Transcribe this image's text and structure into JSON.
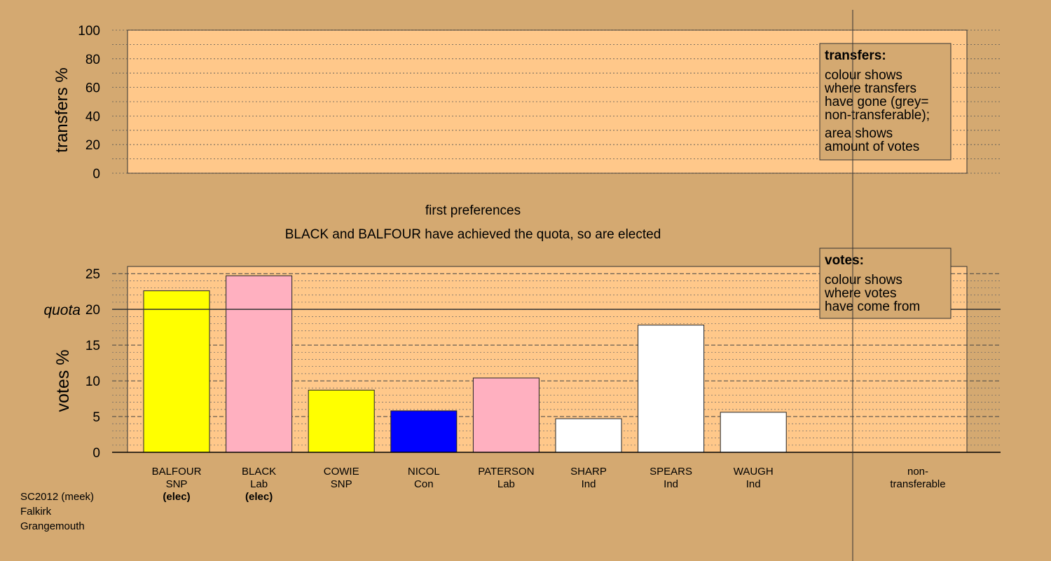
{
  "colors": {
    "background": "#D4A971",
    "plot_bg": "#FFC88A",
    "SNP": "#FFFF00",
    "Lab": "#FFB0C0",
    "Con": "#0000FF",
    "Ind": "#FFFFFF"
  },
  "chart_data": [
    {
      "type": "bar",
      "title": "transfers",
      "ylabel": "transfers %",
      "ylim": [
        0,
        100
      ],
      "yticks": [
        "0",
        "20",
        "40",
        "60",
        "80",
        "100"
      ],
      "series": [],
      "legend": {
        "placement": "top-right",
        "heading": "transfers:",
        "lines1": [
          "colour shows",
          "where transfers",
          "have gone (grey=",
          "non-transferable);"
        ],
        "lines2": [
          "area shows",
          "amount of votes"
        ]
      }
    },
    {
      "type": "bar",
      "title": "first preferences",
      "subtitle": "BLACK and BALFOUR have achieved the quota, so are elected",
      "ylabel": "votes %",
      "ylim": [
        0,
        25
      ],
      "yticks": [
        "0",
        "5",
        "10",
        "15",
        "20",
        "25"
      ],
      "quota": 20,
      "quota_label": "quota",
      "categories": [
        {
          "name": "BALFOUR",
          "party": "SNP",
          "status": "(elec)"
        },
        {
          "name": "BLACK",
          "party": "Lab",
          "status": "(elec)"
        },
        {
          "name": "COWIE",
          "party": "SNP",
          "status": ""
        },
        {
          "name": "NICOL",
          "party": "Con",
          "status": ""
        },
        {
          "name": "PATERSON",
          "party": "Lab",
          "status": ""
        },
        {
          "name": "SHARP",
          "party": "Ind",
          "status": ""
        },
        {
          "name": "SPEARS",
          "party": "Ind",
          "status": ""
        },
        {
          "name": "WAUGH",
          "party": "Ind",
          "status": ""
        }
      ],
      "values": [
        22.6,
        24.7,
        8.7,
        5.8,
        10.4,
        4.7,
        17.8,
        5.6
      ],
      "nontransferable_label": [
        "non-",
        "transferable"
      ],
      "legend": {
        "placement": "top-right",
        "heading": "votes:",
        "lines": [
          "colour shows",
          "where votes",
          "have come from"
        ]
      }
    }
  ],
  "footer": {
    "lines": [
      "SC2012 (meek)",
      "Falkirk",
      "Grangemouth"
    ]
  }
}
